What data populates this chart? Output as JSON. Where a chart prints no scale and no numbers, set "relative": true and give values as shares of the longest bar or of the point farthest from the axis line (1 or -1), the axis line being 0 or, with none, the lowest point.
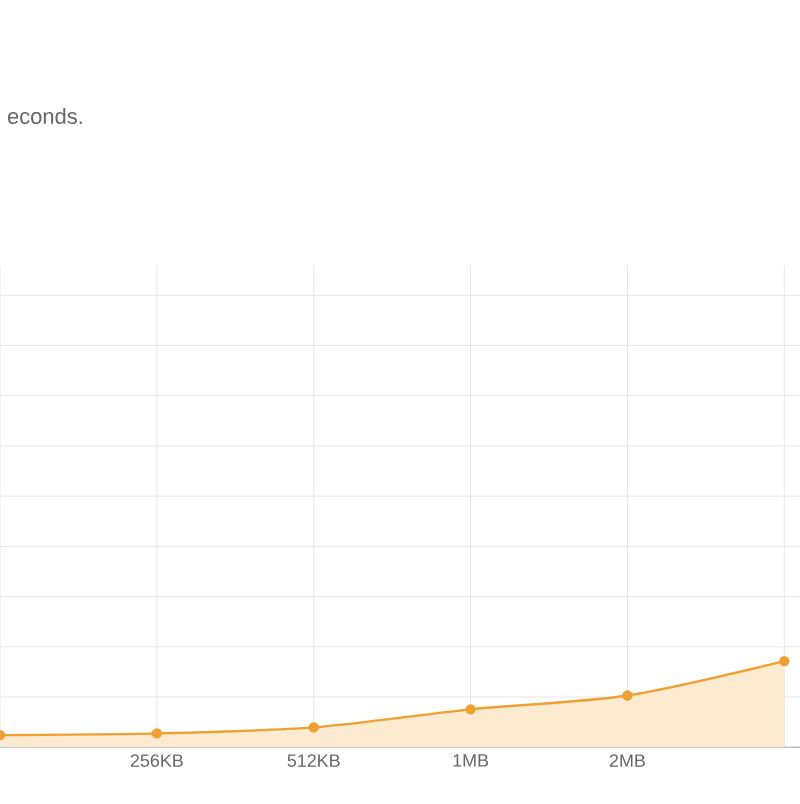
{
  "chart_data": {
    "type": "area",
    "title": "econds.",
    "relative": true,
    "categories": [
      null,
      "256KB",
      "512KB",
      "1MB",
      "2MB",
      null
    ],
    "values": [
      0.14,
      0.16,
      0.23,
      0.44,
      0.6,
      1
    ],
    "color": "#f0a030",
    "grid": true,
    "marker": "circle"
  }
}
